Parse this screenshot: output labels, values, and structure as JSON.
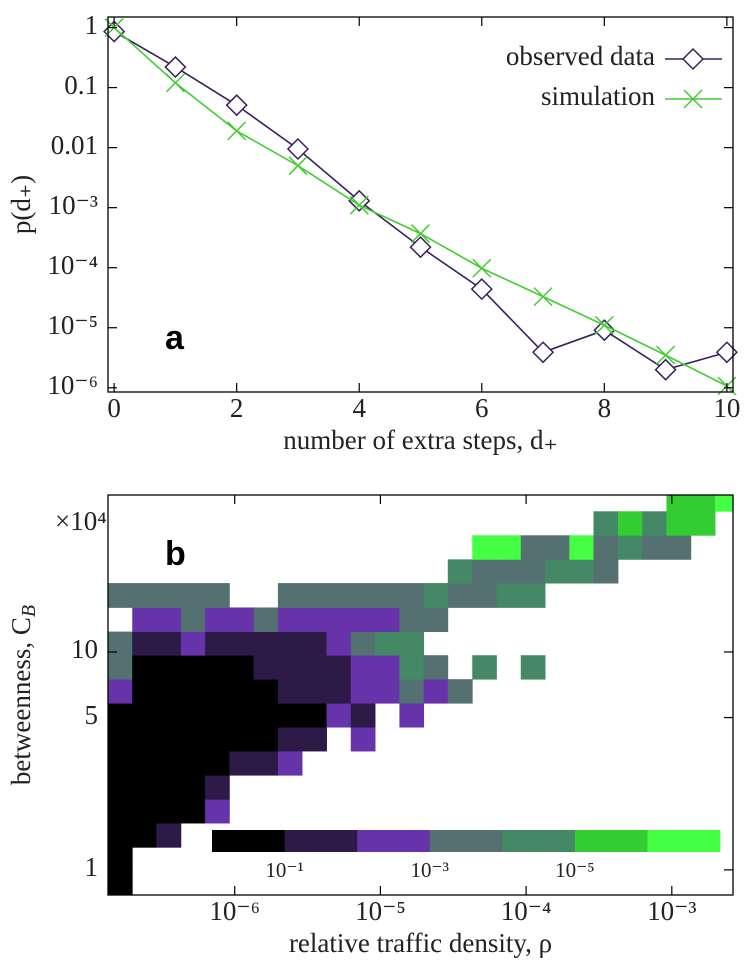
{
  "chart_data": [
    {
      "type": "line",
      "panel_label": "a",
      "xlabel": "number of extra steps, d₊",
      "ylabel": "p(d₊)",
      "x": [
        0,
        1,
        2,
        3,
        4,
        5,
        6,
        7,
        8,
        9,
        10
      ],
      "series": [
        {
          "name": "observed data",
          "color": "#3a1f5c",
          "marker": "diamond",
          "values": [
            0.86,
            0.22,
            0.051,
            0.0095,
            0.0013,
            0.00022,
            4.4e-05,
            3.9e-06,
            9.1e-06,
            2e-06,
            3.9e-06
          ]
        },
        {
          "name": "simulation",
          "color": "#44cc33",
          "marker": "cross",
          "values": [
            1.0,
            0.12,
            0.019,
            0.005,
            0.0011,
            0.00037,
            9.8e-05,
            3.3e-05,
            1.1e-05,
            3.5e-06,
            1.07e-06
          ]
        }
      ],
      "xlim": [
        -0.1,
        10.1
      ],
      "xticks": [
        0,
        2,
        4,
        6,
        8,
        10
      ],
      "ylim": [
        8.5e-07,
        1.5
      ],
      "ylog": true,
      "yticks": [
        1,
        0.1,
        0.01,
        {
          "value": 0.001,
          "label": "10⁻³"
        },
        {
          "value": 0.0001,
          "label": "10⁻⁴"
        },
        {
          "value": 1e-05,
          "label": "10⁻⁵"
        },
        {
          "value": 1e-06,
          "label": "10⁻⁶"
        }
      ],
      "legend": "top-right"
    },
    {
      "type": "heatmap",
      "panel_label": "b",
      "xlabel": "relative traffic density, ρ",
      "ylabel": "betweenness, C_B",
      "y_multiplier": "×10⁴",
      "xlog": true,
      "ylog": true,
      "xlim": [
        1.35e-07,
        0.00263
      ],
      "ylim": [
        0.767,
        52.5
      ],
      "xticks": [
        {
          "value": 1e-06,
          "label": "10⁻⁶"
        },
        {
          "value": 1e-05,
          "label": "10⁻⁵"
        },
        {
          "value": 0.0001,
          "label": "10⁻⁴"
        },
        {
          "value": 0.001,
          "label": "10⁻³"
        }
      ],
      "yticks": [
        1,
        5,
        10
      ],
      "x_edges": [
        1.35e-07,
        1.98e-07,
        2.9e-07,
        4.27e-07,
        6.26e-07,
        9.19e-07,
        1.35e-06,
        1.98e-06,
        2.9e-06,
        4.27e-06,
        6.26e-06,
        9.19e-06,
        1.35e-05,
        1.98e-05,
        2.9e-05,
        4.27e-05,
        6.26e-05,
        9.19e-05,
        0.000135,
        0.000198,
        0.00029,
        0.000427,
        0.000626,
        0.000919,
        0.00135,
        0.00198,
        0.00263
      ],
      "y_edges": [
        0.767,
        0.989,
        1.27,
        1.64,
        2.11,
        2.72,
        3.51,
        4.52,
        5.82,
        7.5,
        9.66,
        12.4,
        16.0,
        20.7,
        26.6,
        34.3,
        44.2,
        52.5
      ],
      "z": [
        [
          0.3,
          null,
          null,
          null,
          null,
          null,
          null,
          null,
          null,
          null,
          null,
          null,
          null,
          null,
          null,
          null,
          null,
          null,
          null,
          null,
          null,
          null,
          null,
          null,
          null,
          null
        ],
        [
          0.3,
          null,
          null,
          null,
          null,
          null,
          null,
          null,
          null,
          null,
          null,
          null,
          null,
          null,
          null,
          null,
          null,
          null,
          null,
          null,
          null,
          null,
          null,
          null,
          null,
          null
        ],
        [
          0.3,
          0.3,
          0.03,
          null,
          null,
          null,
          null,
          null,
          null,
          null,
          null,
          null,
          null,
          null,
          null,
          null,
          null,
          null,
          null,
          null,
          null,
          null,
          null,
          null,
          null,
          null
        ],
        [
          0.3,
          0.3,
          0.3,
          0.3,
          0.003,
          null,
          null,
          null,
          null,
          null,
          null,
          null,
          null,
          null,
          null,
          null,
          null,
          null,
          null,
          null,
          null,
          null,
          null,
          null,
          null,
          null
        ],
        [
          0.3,
          0.3,
          0.3,
          0.3,
          0.03,
          null,
          null,
          null,
          null,
          null,
          null,
          null,
          null,
          null,
          null,
          null,
          null,
          null,
          null,
          null,
          null,
          null,
          null,
          null,
          null,
          null
        ],
        [
          0.3,
          0.3,
          0.3,
          0.3,
          0.3,
          0.03,
          0.03,
          0.003,
          null,
          null,
          null,
          null,
          null,
          null,
          null,
          null,
          null,
          null,
          null,
          null,
          null,
          null,
          null,
          null,
          null,
          null
        ],
        [
          0.3,
          0.3,
          0.3,
          0.3,
          0.3,
          0.3,
          0.3,
          0.03,
          0.03,
          null,
          0.003,
          null,
          null,
          null,
          null,
          null,
          null,
          null,
          null,
          null,
          null,
          null,
          null,
          null,
          null,
          null
        ],
        [
          0.3,
          0.3,
          0.3,
          0.3,
          0.3,
          0.3,
          0.3,
          0.3,
          0.3,
          0.003,
          0.03,
          null,
          0.003,
          null,
          null,
          null,
          null,
          null,
          null,
          null,
          null,
          null,
          null,
          null,
          null,
          null
        ],
        [
          0.003,
          0.3,
          0.3,
          0.3,
          0.3,
          0.3,
          0.3,
          0.03,
          0.03,
          0.03,
          0.003,
          0.003,
          0.0003,
          0.003,
          0.0003,
          null,
          null,
          null,
          null,
          null,
          null,
          null,
          null,
          null,
          null,
          null
        ],
        [
          0.0003,
          0.3,
          0.3,
          0.3,
          0.3,
          0.3,
          0.03,
          0.03,
          0.03,
          0.03,
          0.003,
          0.003,
          3e-05,
          0.0003,
          null,
          3e-05,
          null,
          3e-05,
          null,
          null,
          null,
          null,
          null,
          null,
          null,
          null
        ],
        [
          0.0003,
          0.03,
          0.03,
          0.003,
          0.03,
          0.03,
          0.03,
          0.03,
          0.03,
          0.003,
          0.0003,
          3e-05,
          3e-05,
          null,
          null,
          null,
          null,
          null,
          null,
          null,
          null,
          null,
          null,
          null,
          null,
          null
        ],
        [
          null,
          0.003,
          0.003,
          0.0003,
          0.003,
          0.003,
          0.0003,
          0.003,
          0.003,
          0.003,
          0.003,
          0.003,
          0.0003,
          0.0003,
          null,
          null,
          null,
          null,
          null,
          null,
          null,
          null,
          null,
          null,
          null,
          null
        ],
        [
          0.0003,
          0.0003,
          0.0003,
          0.0003,
          0.0003,
          null,
          null,
          0.0003,
          0.0003,
          0.0003,
          0.0003,
          0.0003,
          0.0003,
          3e-05,
          0.0003,
          0.0003,
          3e-05,
          3e-05,
          null,
          null,
          null,
          null,
          null,
          null,
          null,
          null
        ],
        [
          null,
          null,
          null,
          null,
          null,
          null,
          null,
          null,
          null,
          null,
          null,
          null,
          null,
          null,
          3e-05,
          0.0003,
          0.0003,
          0.0003,
          3e-05,
          3e-05,
          0.0003,
          null,
          null,
          null,
          null,
          null
        ],
        [
          null,
          null,
          null,
          null,
          null,
          null,
          null,
          null,
          null,
          null,
          null,
          null,
          null,
          null,
          null,
          3e-07,
          3e-07,
          0.0003,
          0.0003,
          3e-07,
          0.0003,
          3e-05,
          0.0003,
          0.0003,
          null,
          null
        ],
        [
          null,
          null,
          null,
          null,
          null,
          null,
          null,
          null,
          null,
          null,
          null,
          null,
          null,
          null,
          null,
          null,
          null,
          null,
          null,
          null,
          3e-05,
          3e-06,
          3e-05,
          3e-06,
          3e-06,
          null
        ],
        [
          null,
          null,
          null,
          null,
          null,
          null,
          null,
          null,
          null,
          null,
          null,
          null,
          null,
          null,
          null,
          null,
          null,
          null,
          null,
          null,
          null,
          null,
          null,
          3e-06,
          3e-06,
          3e-07
        ]
      ],
      "colorbar": {
        "bounds": [
          1,
          0.1,
          0.01,
          0.001,
          0.0001,
          1e-05,
          1e-06,
          1e-07
        ],
        "colors": [
          "#000000",
          "#2e1a47",
          "#6633aa",
          "#557070",
          "#448866",
          "#33cc33",
          "#44ff44"
        ],
        "ticks": [
          {
            "value": 0.1,
            "label": "10⁻¹"
          },
          {
            "value": 0.001,
            "label": "10⁻³"
          },
          {
            "value": 1e-05,
            "label": "10⁻⁵"
          }
        ]
      }
    }
  ]
}
